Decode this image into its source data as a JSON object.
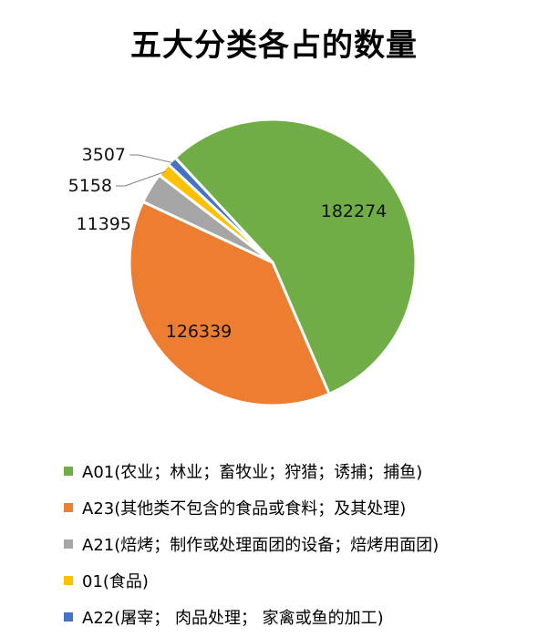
{
  "chart_data": {
    "type": "pie",
    "title": "五大分类各占的数量",
    "categories": [
      "A01(农业；林业；畜牧业；狩猎；诱捕；捕鱼)",
      "A23(其他类不包含的食品或食料；及其处理)",
      "A21(焙烤；制作或处理面团的设备；焙烤用面团)",
      "01(食品)",
      "A22(屠宰； 肉品处理； 家禽或鱼的加工)"
    ],
    "values": [
      182274,
      126339,
      11395,
      5158,
      3507
    ],
    "colors": [
      "#70AD47",
      "#ED7D31",
      "#A5A5A5",
      "#FFC000",
      "#4472C4"
    ],
    "legend_position": "bottom"
  }
}
